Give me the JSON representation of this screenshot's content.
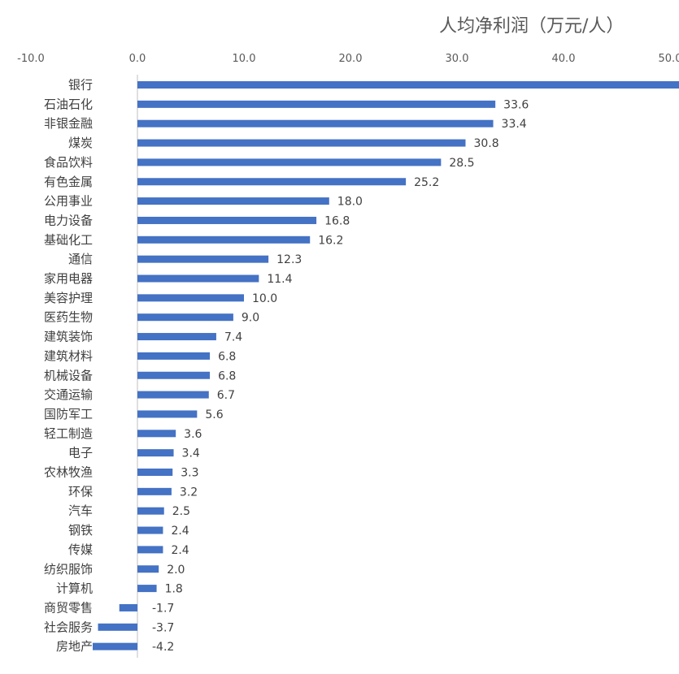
{
  "chart_data": {
    "type": "bar",
    "orientation": "horizontal",
    "title": "人均净利润（万元/人）",
    "xlim": [
      -10,
      50
    ],
    "xticks": [
      "-10.0",
      "0.0",
      "10.0",
      "20.0",
      "30.0",
      "40.0",
      "50.0"
    ],
    "grid": false,
    "legend": "none",
    "bar_color": "#4472C4",
    "categories": [
      "银行",
      "石油石化",
      "非银金融",
      "煤炭",
      "食品饮料",
      "有色金属",
      "公用事业",
      "电力设备",
      "基础化工",
      "通信",
      "家用电器",
      "美容护理",
      "医药生物",
      "建筑装饰",
      "建筑材料",
      "机械设备",
      "交通运输",
      "国防军工",
      "轻工制造",
      "电子",
      "农林牧渔",
      "环保",
      "汽车",
      "钢铁",
      "传媒",
      "纺织服饰",
      "计算机",
      "商贸零售",
      "社会服务",
      "房地产"
    ],
    "values": [
      51,
      33.6,
      33.4,
      30.8,
      28.5,
      25.2,
      18.0,
      16.8,
      16.2,
      12.3,
      11.4,
      10.0,
      9.0,
      7.4,
      6.8,
      6.8,
      6.7,
      5.6,
      3.6,
      3.4,
      3.3,
      3.2,
      2.5,
      2.4,
      2.4,
      2.0,
      1.8,
      -1.7,
      -3.7,
      -4.2
    ],
    "data_labels": [
      "",
      "33.6",
      "33.4",
      "30.8",
      "28.5",
      "25.2",
      "18.0",
      "16.8",
      "16.2",
      "12.3",
      "11.4",
      "10.0",
      "9.0",
      "7.4",
      "6.8",
      "6.8",
      "6.7",
      "5.6",
      "3.6",
      "3.4",
      "3.3",
      "3.2",
      "2.5",
      "2.4",
      "2.4",
      "2.0",
      "1.8",
      "-1.7",
      "-3.7",
      "-4.2"
    ]
  }
}
